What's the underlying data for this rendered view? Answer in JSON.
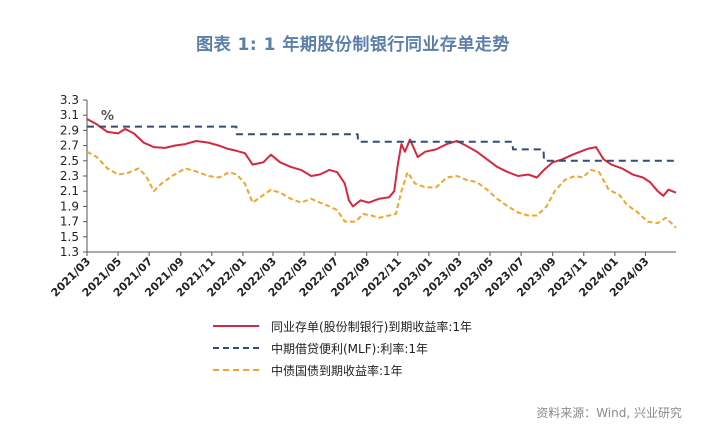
{
  "title": "图表 1: 1 年期股份制银行同业存单走势",
  "source": "资料来源：Wind, 兴业研究",
  "colors": {
    "title": "#5b7fa8",
    "ncd": "#d22a3f",
    "mlf": "#334d75",
    "cdb": "#f2a52a"
  },
  "chart_data": {
    "type": "line",
    "title": "图表 1: 1 年期股份制银行同业存单走势",
    "ylabel": "%",
    "ylim": [
      1.3,
      3.3
    ],
    "yticks": [
      "3.3",
      "3.1",
      "2.9",
      "2.7",
      "2.5",
      "2.3",
      "2.1",
      "1.9",
      "1.7",
      "1.5",
      "1.3"
    ],
    "xlim": [
      "2021-03-01",
      "2024-04-30"
    ],
    "xticks": [
      "2021/03",
      "2021/05",
      "2021/07",
      "2021/09",
      "2021/11",
      "2022/01",
      "2022/03",
      "2022/05",
      "2022/07",
      "2022/09",
      "2022/11",
      "2023/01",
      "2023/03",
      "2023/05",
      "2023/07",
      "2023/09",
      "2023/11",
      "2024/01",
      "2024/03"
    ],
    "grid": false,
    "legend_position": "bottom",
    "series": [
      {
        "name": "同业存单(股份制银行)到期收益率:1年",
        "style": "solid",
        "points": [
          [
            "2021-03-01",
            3.05
          ],
          [
            "2021-03-20",
            2.98
          ],
          [
            "2021-04-10",
            2.88
          ],
          [
            "2021-05-01",
            2.86
          ],
          [
            "2021-05-15",
            2.92
          ],
          [
            "2021-06-01",
            2.86
          ],
          [
            "2021-06-20",
            2.74
          ],
          [
            "2021-07-10",
            2.68
          ],
          [
            "2021-08-01",
            2.67
          ],
          [
            "2021-08-20",
            2.7
          ],
          [
            "2021-09-10",
            2.72
          ],
          [
            "2021-10-01",
            2.76
          ],
          [
            "2021-10-25",
            2.74
          ],
          [
            "2021-11-15",
            2.7
          ],
          [
            "2021-12-01",
            2.66
          ],
          [
            "2021-12-20",
            2.63
          ],
          [
            "2022-01-05",
            2.6
          ],
          [
            "2022-01-20",
            2.45
          ],
          [
            "2022-02-10",
            2.48
          ],
          [
            "2022-02-25",
            2.58
          ],
          [
            "2022-03-15",
            2.48
          ],
          [
            "2022-04-05",
            2.42
          ],
          [
            "2022-04-25",
            2.38
          ],
          [
            "2022-05-15",
            2.3
          ],
          [
            "2022-06-01",
            2.32
          ],
          [
            "2022-06-20",
            2.38
          ],
          [
            "2022-07-05",
            2.35
          ],
          [
            "2022-07-20",
            2.2
          ],
          [
            "2022-07-28",
            1.98
          ],
          [
            "2022-08-05",
            1.9
          ],
          [
            "2022-08-20",
            1.98
          ],
          [
            "2022-09-05",
            1.95
          ],
          [
            "2022-09-25",
            2.0
          ],
          [
            "2022-10-15",
            2.02
          ],
          [
            "2022-10-25",
            2.1
          ],
          [
            "2022-11-01",
            2.45
          ],
          [
            "2022-11-08",
            2.72
          ],
          [
            "2022-11-15",
            2.62
          ],
          [
            "2022-11-25",
            2.78
          ],
          [
            "2022-12-10",
            2.55
          ],
          [
            "2022-12-25",
            2.62
          ],
          [
            "2023-01-15",
            2.65
          ],
          [
            "2023-02-05",
            2.72
          ],
          [
            "2023-02-25",
            2.76
          ],
          [
            "2023-03-15",
            2.7
          ],
          [
            "2023-04-05",
            2.62
          ],
          [
            "2023-04-25",
            2.52
          ],
          [
            "2023-05-15",
            2.42
          ],
          [
            "2023-06-05",
            2.35
          ],
          [
            "2023-06-25",
            2.3
          ],
          [
            "2023-07-15",
            2.32
          ],
          [
            "2023-08-01",
            2.28
          ],
          [
            "2023-08-15",
            2.38
          ],
          [
            "2023-09-01",
            2.48
          ],
          [
            "2023-09-20",
            2.52
          ],
          [
            "2023-10-10",
            2.58
          ],
          [
            "2023-10-25",
            2.62
          ],
          [
            "2023-11-10",
            2.66
          ],
          [
            "2023-11-25",
            2.68
          ],
          [
            "2023-12-10",
            2.52
          ],
          [
            "2023-12-25",
            2.45
          ],
          [
            "2024-01-15",
            2.4
          ],
          [
            "2024-02-05",
            2.32
          ],
          [
            "2024-02-25",
            2.28
          ],
          [
            "2024-03-10",
            2.22
          ],
          [
            "2024-03-25",
            2.1
          ],
          [
            "2024-04-05",
            2.04
          ],
          [
            "2024-04-15",
            2.12
          ],
          [
            "2024-04-30",
            2.08
          ]
        ]
      },
      {
        "name": "中期借贷便利(MLF):利率:1年",
        "style": "dashed",
        "points": [
          [
            "2021-03-01",
            2.95
          ],
          [
            "2021-12-19",
            2.95
          ],
          [
            "2021-12-20",
            2.85
          ],
          [
            "2022-01-16",
            2.85
          ],
          [
            "2022-01-17",
            2.85
          ],
          [
            "2022-08-14",
            2.85
          ],
          [
            "2022-08-15",
            2.75
          ],
          [
            "2023-06-14",
            2.75
          ],
          [
            "2023-06-15",
            2.65
          ],
          [
            "2023-08-14",
            2.65
          ],
          [
            "2023-08-15",
            2.5
          ],
          [
            "2024-04-30",
            2.5
          ]
        ]
      },
      {
        "name": "中债国债到期收益率:1年",
        "style": "dashed",
        "points": [
          [
            "2021-03-01",
            2.62
          ],
          [
            "2021-03-20",
            2.55
          ],
          [
            "2021-04-10",
            2.4
          ],
          [
            "2021-05-01",
            2.32
          ],
          [
            "2021-05-20",
            2.34
          ],
          [
            "2021-06-10",
            2.4
          ],
          [
            "2021-06-25",
            2.3
          ],
          [
            "2021-07-10",
            2.1
          ],
          [
            "2021-07-25",
            2.2
          ],
          [
            "2021-08-15",
            2.3
          ],
          [
            "2021-09-10",
            2.4
          ],
          [
            "2021-10-01",
            2.36
          ],
          [
            "2021-10-25",
            2.3
          ],
          [
            "2021-11-15",
            2.28
          ],
          [
            "2021-12-05",
            2.35
          ],
          [
            "2021-12-20",
            2.32
          ],
          [
            "2022-01-05",
            2.2
          ],
          [
            "2022-01-20",
            1.95
          ],
          [
            "2022-02-10",
            2.05
          ],
          [
            "2022-02-25",
            2.12
          ],
          [
            "2022-03-15",
            2.08
          ],
          [
            "2022-04-05",
            2.0
          ],
          [
            "2022-04-25",
            1.95
          ],
          [
            "2022-05-15",
            2.0
          ],
          [
            "2022-06-01",
            1.95
          ],
          [
            "2022-06-20",
            1.9
          ],
          [
            "2022-07-05",
            1.85
          ],
          [
            "2022-07-20",
            1.7
          ],
          [
            "2022-08-10",
            1.7
          ],
          [
            "2022-08-25",
            1.8
          ],
          [
            "2022-09-10",
            1.78
          ],
          [
            "2022-09-25",
            1.75
          ],
          [
            "2022-10-15",
            1.78
          ],
          [
            "2022-10-28",
            1.8
          ],
          [
            "2022-11-08",
            2.1
          ],
          [
            "2022-11-20",
            2.35
          ],
          [
            "2022-12-05",
            2.2
          ],
          [
            "2022-12-25",
            2.15
          ],
          [
            "2023-01-15",
            2.15
          ],
          [
            "2023-02-05",
            2.28
          ],
          [
            "2023-02-25",
            2.3
          ],
          [
            "2023-03-15",
            2.25
          ],
          [
            "2023-04-05",
            2.22
          ],
          [
            "2023-04-25",
            2.12
          ],
          [
            "2023-05-15",
            2.0
          ],
          [
            "2023-06-05",
            1.9
          ],
          [
            "2023-06-25",
            1.82
          ],
          [
            "2023-07-15",
            1.78
          ],
          [
            "2023-08-01",
            1.78
          ],
          [
            "2023-08-20",
            1.9
          ],
          [
            "2023-09-05",
            2.1
          ],
          [
            "2023-09-25",
            2.25
          ],
          [
            "2023-10-15",
            2.3
          ],
          [
            "2023-10-30",
            2.28
          ],
          [
            "2023-11-15",
            2.38
          ],
          [
            "2023-12-01",
            2.35
          ],
          [
            "2023-12-20",
            2.12
          ],
          [
            "2024-01-10",
            2.05
          ],
          [
            "2024-01-25",
            1.92
          ],
          [
            "2024-02-15",
            1.82
          ],
          [
            "2024-03-05",
            1.7
          ],
          [
            "2024-03-25",
            1.68
          ],
          [
            "2024-04-10",
            1.75
          ],
          [
            "2024-04-30",
            1.62
          ]
        ]
      }
    ]
  }
}
